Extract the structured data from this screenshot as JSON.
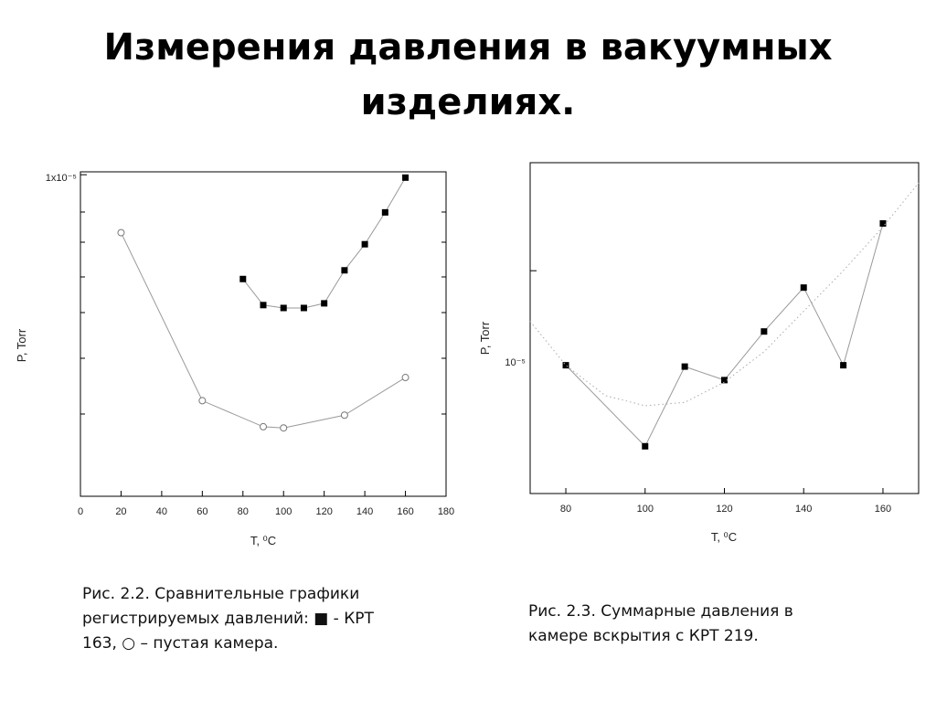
{
  "title": {
    "line1": "Измерения давления в вакуумных",
    "line2": "изделиях."
  },
  "colors": {
    "line": "#999999",
    "marker": "#000000",
    "frame": "#000000"
  },
  "chart_data": [
    {
      "type": "line",
      "title": "",
      "xlabel": "T, ⁰C",
      "ylabel": "P, Torr",
      "yscale": "log",
      "xlim": [
        0,
        180
      ],
      "ylim_log10": [
        -5.555,
        -4.995
      ],
      "x_ticks": [
        0,
        20,
        40,
        60,
        80,
        100,
        120,
        140,
        160,
        180
      ],
      "x_tick_labels": [
        "0",
        "20",
        "40",
        "60",
        "80",
        "100",
        "120",
        "140",
        "160",
        "180"
      ],
      "y_tick_labels": [
        {
          "label": "1x10⁻⁵",
          "value_log10": -5
        }
      ],
      "grid": false,
      "series": [
        {
          "marker": "filled-square",
          "x": [
            80,
            90,
            100,
            110,
            120,
            130,
            140,
            150,
            160
          ],
          "log10_y": [
            -5.18,
            -5.225,
            -5.23,
            -5.23,
            -5.222,
            -5.165,
            -5.12,
            -5.065,
            -5.005
          ]
        },
        {
          "marker": "open-circle",
          "x": [
            20,
            60,
            90,
            100,
            130,
            160
          ],
          "log10_y": [
            -5.1,
            -5.39,
            -5.435,
            -5.437,
            -5.415,
            -5.35
          ]
        }
      ]
    },
    {
      "type": "line",
      "title": "",
      "xlabel": "T, ⁰C",
      "ylabel": "P, Torr",
      "yscale": "log",
      "xlim": [
        71,
        169
      ],
      "ylim_log10": [
        -5.33,
        -4.84
      ],
      "x_ticks": [
        80,
        100,
        120,
        140,
        160
      ],
      "x_tick_labels": [
        "80",
        "100",
        "120",
        "140",
        "160"
      ],
      "y_tick_labels": [
        {
          "label": "10⁻⁵",
          "value_log10": -5
        }
      ],
      "grid": false,
      "series": [
        {
          "marker": "filled-square",
          "x": [
            80,
            100,
            110,
            120,
            130,
            140,
            150,
            160
          ],
          "log10_y": [
            -5.14,
            -5.26,
            -5.142,
            -5.162,
            -5.09,
            -5.025,
            -5.14,
            -4.93
          ]
        },
        {
          "marker": "none",
          "style": "dotted-fit",
          "x": [
            71,
            80,
            90,
            100,
            110,
            120,
            130,
            140,
            150,
            160,
            169
          ],
          "log10_y": [
            -5.075,
            -5.14,
            -5.185,
            -5.2,
            -5.195,
            -5.165,
            -5.12,
            -5.06,
            -5.0,
            -4.935,
            -4.87
          ]
        }
      ]
    }
  ],
  "captions": {
    "fig1": {
      "line1": "Рис. 2.2. Сравнительные графики",
      "line2": "регистрируемых давлений: ■ - КРТ",
      "line3": "163, ○ – пустая камера."
    },
    "fig2": {
      "line1": "Рис. 2.3. Суммарные давления в",
      "line2": "камере вскрытия с КРТ 219."
    }
  }
}
